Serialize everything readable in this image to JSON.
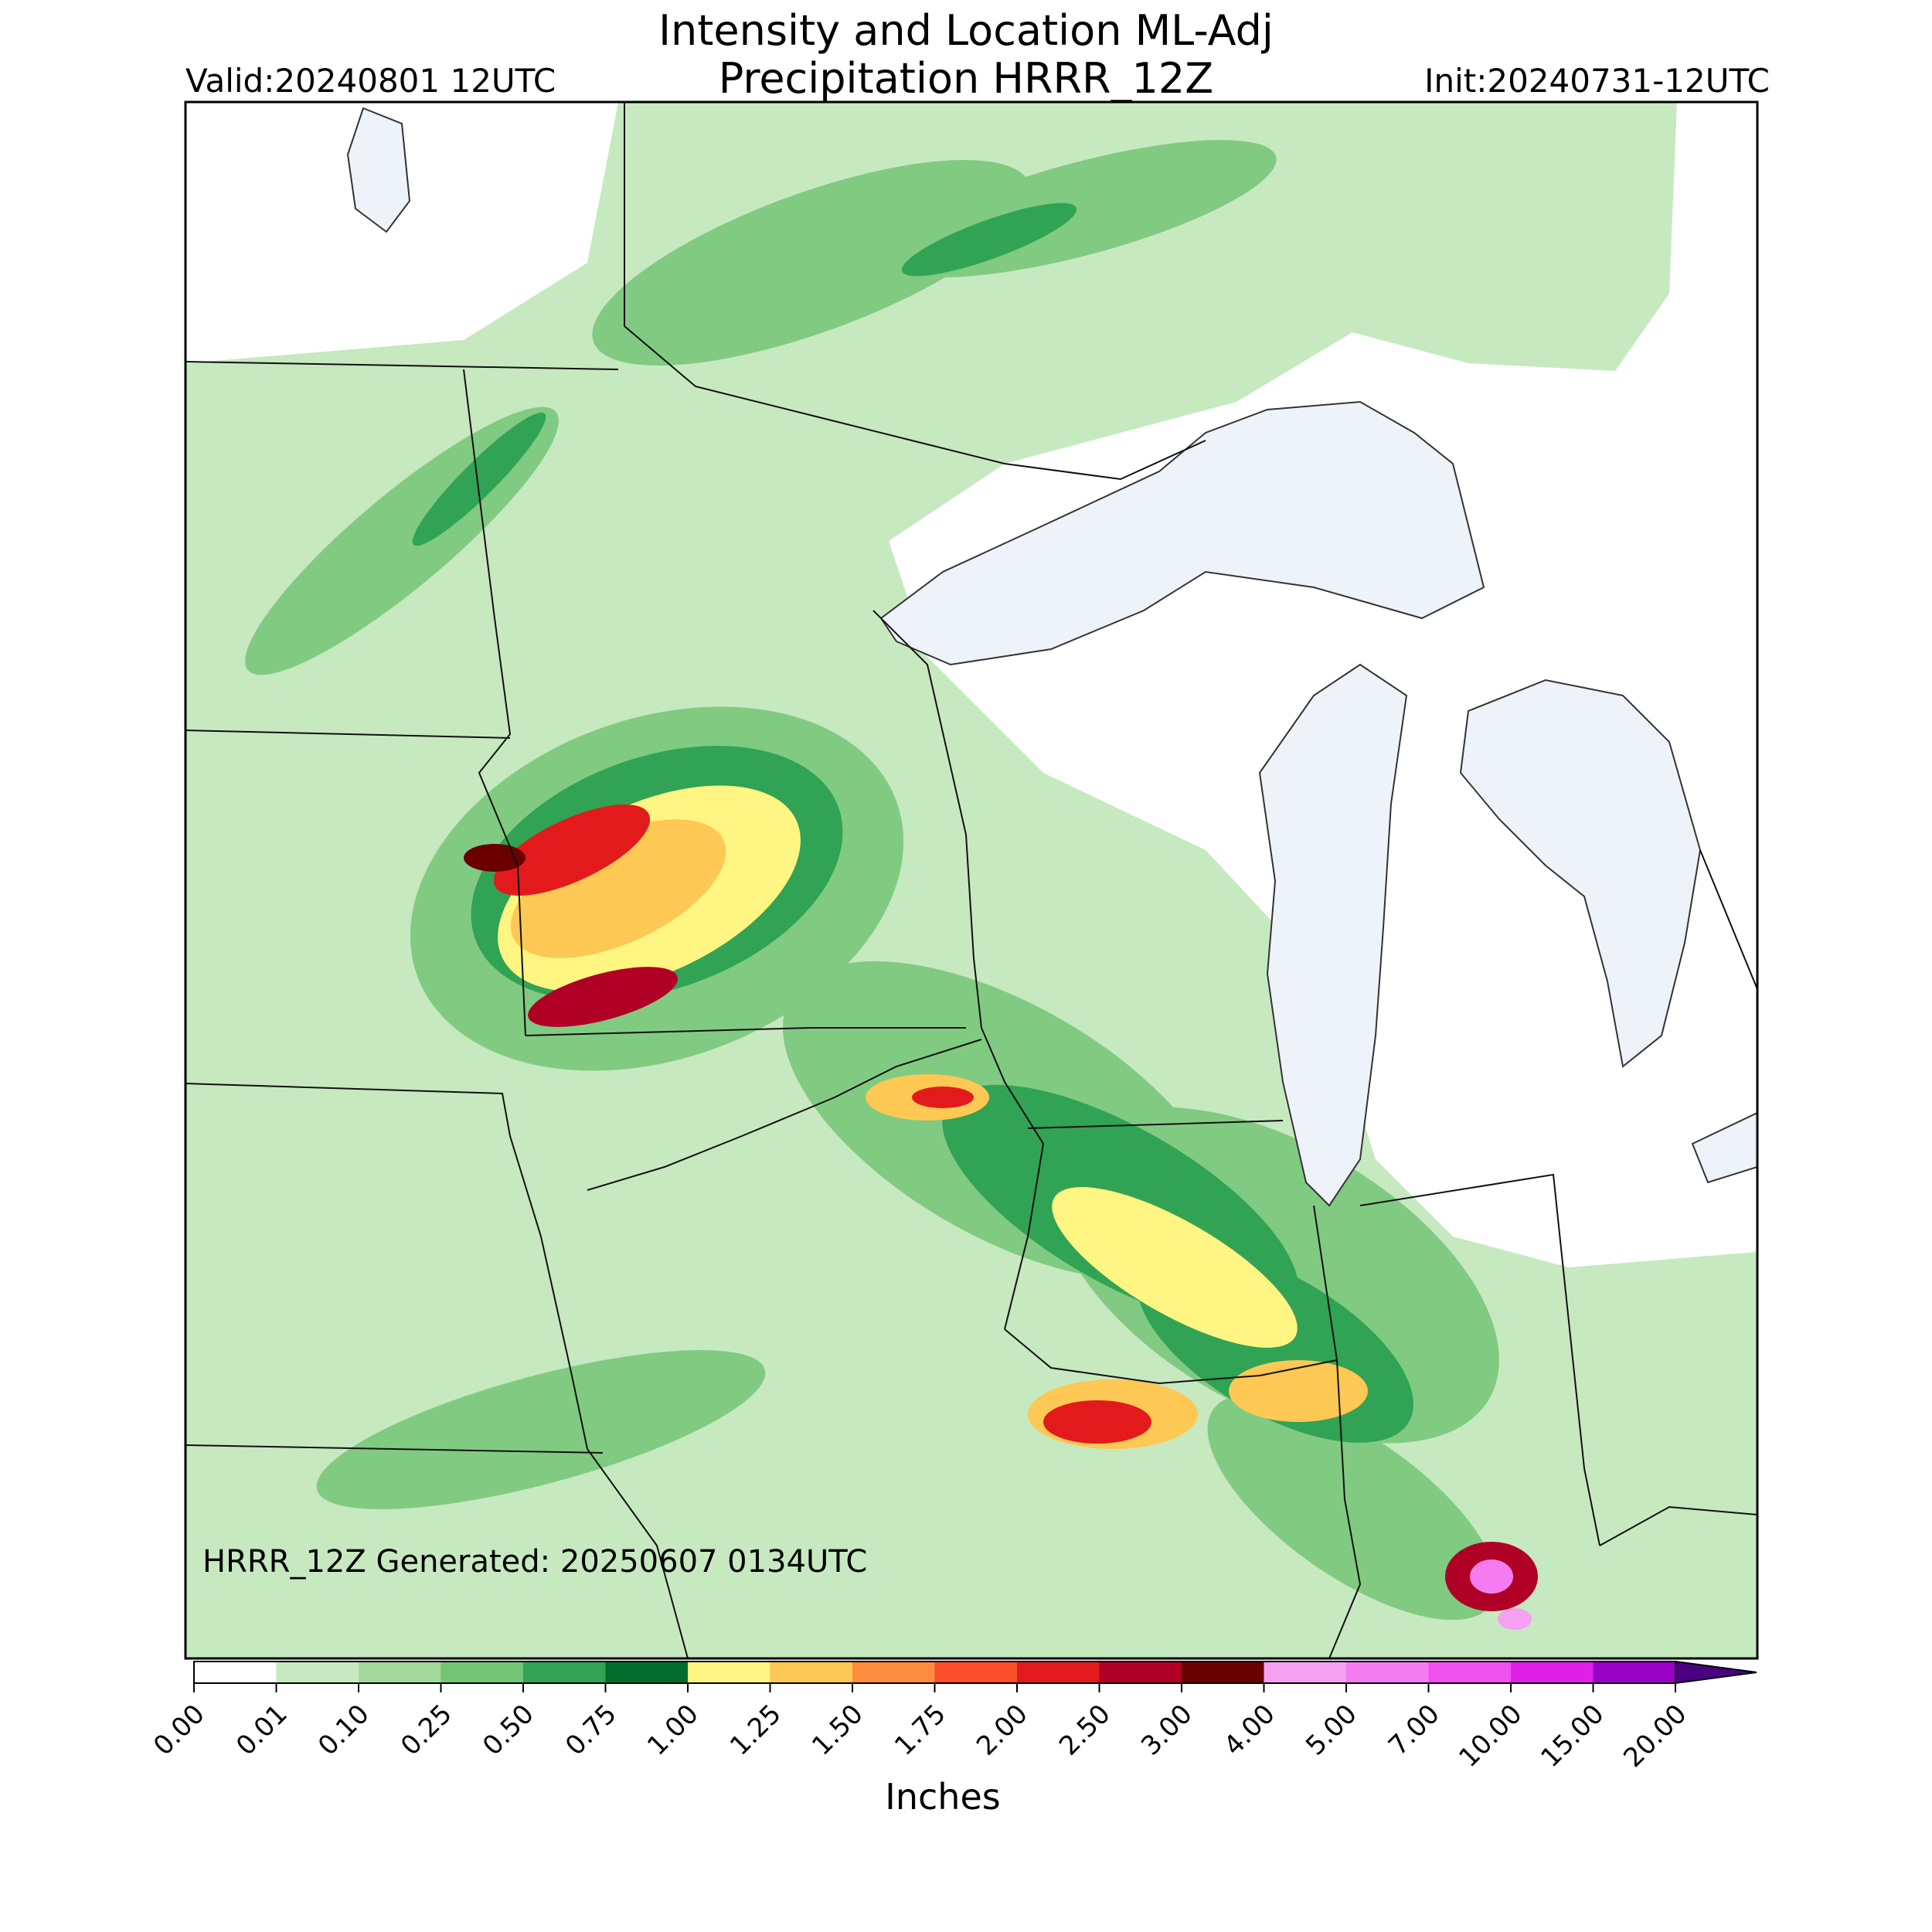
{
  "header": {
    "title_line1": "Intensity and Location ML-Adj",
    "title_line2": "Precipitation HRRR_12Z",
    "valid": "Valid:20240801 12UTC",
    "init": "Init:20240731-12UTC"
  },
  "map": {
    "generated": "HRRR_12Z Generated: 20250607 0134UTC",
    "lake_color": "#eef2f9"
  },
  "colorbar": {
    "unit_label": "Inches",
    "extend": "max",
    "ticks": [
      "0.00",
      "0.01",
      "0.10",
      "0.25",
      "0.50",
      "0.75",
      "1.00",
      "1.25",
      "1.50",
      "1.75",
      "2.00",
      "2.50",
      "3.00",
      "4.00",
      "5.00",
      "7.00",
      "10.00",
      "15.00",
      "20.00"
    ],
    "colors": [
      "#ffffff",
      "#c7e9c0",
      "#a1d99b",
      "#74c476",
      "#31a354",
      "#006d2c",
      "#fff582",
      "#fdc853",
      "#fd8d3c",
      "#fc4e2a",
      "#e31a1c",
      "#b10026",
      "#6a0000",
      "#f5a0f0",
      "#f57cf0",
      "#f050ee",
      "#e020e8",
      "#9a00c6"
    ],
    "extend_color": "#4a0080"
  }
}
